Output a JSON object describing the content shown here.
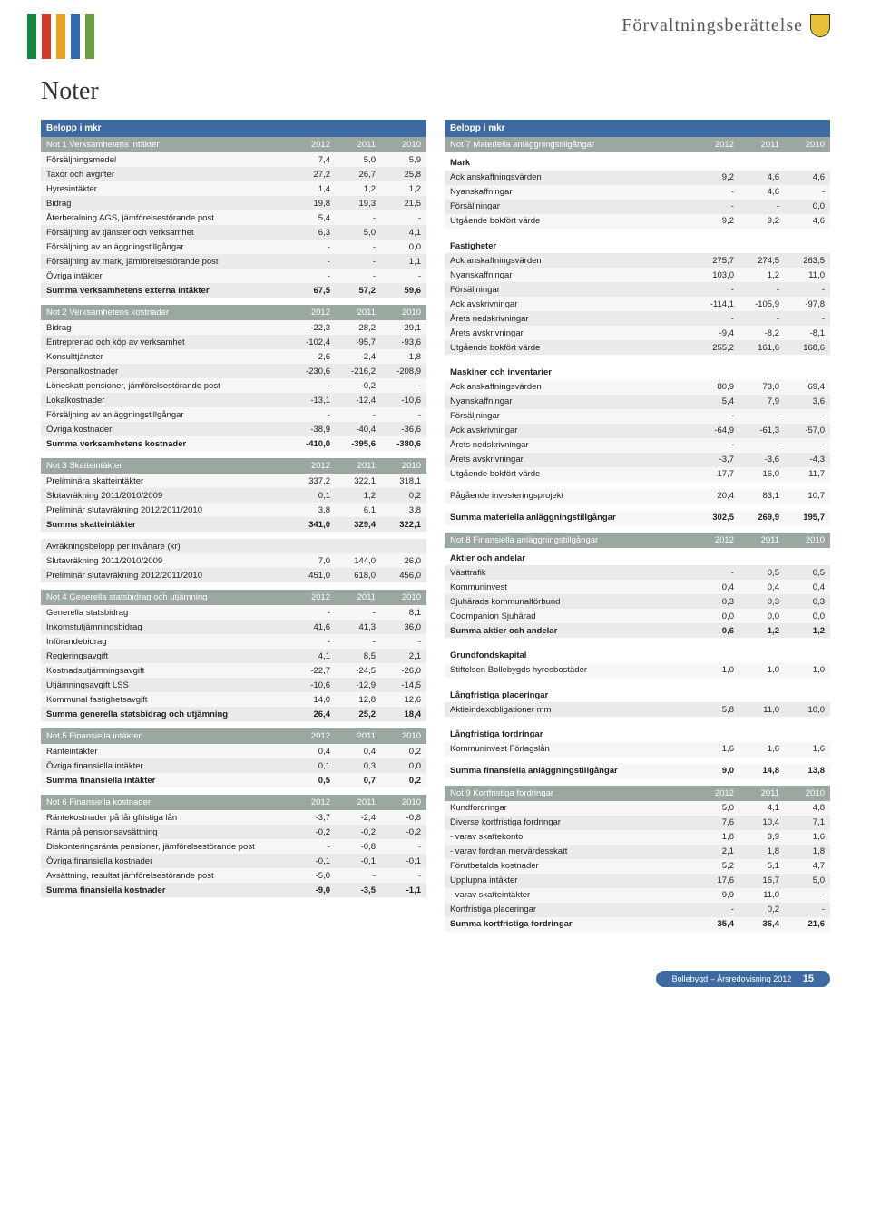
{
  "colors": {
    "header_bg": "#3d6aa0",
    "subhead_bg": "#9ba89f",
    "row_alt": "#e8ebe8",
    "row_base": "#f5f6f5",
    "logo_bars": [
      "#118a41",
      "#cf3a2c",
      "#e8a21d",
      "#2e6bb0",
      "#6b9e3f"
    ]
  },
  "header": {
    "title": "Förvaltningsberättelse"
  },
  "page_title": "Noter",
  "left": {
    "banner": "Belopp i mkr",
    "tables": [
      {
        "sub": "Not 1 Verksamhetens intäkter",
        "cols": [
          "2012",
          "2011",
          "2010"
        ],
        "rows": [
          [
            "Försäljningsmedel",
            "7,4",
            "5,0",
            "5,9"
          ],
          [
            "Taxor och avgifter",
            "27,2",
            "26,7",
            "25,8"
          ],
          [
            "Hyresintäkter",
            "1,4",
            "1,2",
            "1,2"
          ],
          [
            "Bidrag",
            "19,8",
            "19,3",
            "21,5"
          ],
          [
            "Återbetalning AGS, jämförelsestörande post",
            "5,4",
            "-",
            "-"
          ],
          [
            "Försäljning av tjänster och verksamhet",
            "6,3",
            "5,0",
            "4,1"
          ],
          [
            "Försäljning av anläggningstillgångar",
            "-",
            "-",
            "0,0"
          ],
          [
            "Försäljning av mark, jämförelsestörande post",
            "-",
            "-",
            "1,1"
          ],
          [
            "Övriga intäkter",
            "-",
            "-",
            "-"
          ]
        ],
        "sum": [
          "Summa verksamhetens externa intäkter",
          "67,5",
          "57,2",
          "59,6"
        ]
      },
      {
        "sub": "Not 2 Verksamhetens kostnader",
        "cols": [
          "2012",
          "2011",
          "2010"
        ],
        "rows": [
          [
            "Bidrag",
            "-22,3",
            "-28,2",
            "-29,1"
          ],
          [
            "Entreprenad och köp av verksamhet",
            "-102,4",
            "-95,7",
            "-93,6"
          ],
          [
            "Konsulttjänster",
            "-2,6",
            "-2,4",
            "-1,8"
          ],
          [
            "Personalkostnader",
            "-230,6",
            "-216,2",
            "-208,9"
          ],
          [
            "Löneskatt pensioner, jämförelsestörande post",
            "-",
            "-0,2",
            "-"
          ],
          [
            "Lokalkostnader",
            "-13,1",
            "-12,4",
            "-10,6"
          ],
          [
            "Försäljning av anläggningstillgångar",
            "-",
            "-",
            "-"
          ],
          [
            "Övriga kostnader",
            "-38,9",
            "-40,4",
            "-36,6"
          ]
        ],
        "sum": [
          "Summa verksamhetens kostnader",
          "-410,0",
          "-395,6",
          "-380,6"
        ]
      },
      {
        "sub": "Not 3 Skatteintäkter",
        "cols": [
          "2012",
          "2011",
          "2010"
        ],
        "rows": [
          [
            "Preliminära skatteintäkter",
            "337,2",
            "322,1",
            "318,1"
          ],
          [
            "Slutavräkning 2011/2010/2009",
            "0,1",
            "1,2",
            "0,2"
          ],
          [
            "Preliminär slutavräkning 2012/2011/2010",
            "3,8",
            "6,1",
            "3,8"
          ]
        ],
        "sum": [
          "Summa skatteintäkter",
          "341,0",
          "329,4",
          "322,1"
        ],
        "extra_label": "Avräkningsbelopp per invånare (kr)",
        "extra_rows": [
          [
            "Slutavräkning 2011/2010/2009",
            "7,0",
            "144,0",
            "26,0"
          ],
          [
            "Preliminär slutavräkning 2012/2011/2010",
            "451,0",
            "618,0",
            "456,0"
          ]
        ]
      },
      {
        "sub": "Not 4 Generella statsbidrag och utjämning",
        "cols": [
          "2012",
          "2011",
          "2010"
        ],
        "rows": [
          [
            "Generella statsbidrag",
            "-",
            "-",
            "8,1"
          ],
          [
            "Inkomstutjämningsbidrag",
            "41,6",
            "41,3",
            "36,0"
          ],
          [
            "Införandebidrag",
            "-",
            "-",
            "-"
          ],
          [
            "Regleringsavgift",
            "4,1",
            "8,5",
            "2,1"
          ],
          [
            "Kostnadsutjämningsavgift",
            "-22,7",
            "-24,5",
            "-26,0"
          ],
          [
            "Utjämningsavgift LSS",
            "-10,6",
            "-12,9",
            "-14,5"
          ],
          [
            "Kommunal fastighetsavgift",
            "14,0",
            "12,8",
            "12,6"
          ]
        ],
        "sum": [
          "Summa generella statsbidrag och utjämning",
          "26,4",
          "25,2",
          "18,4"
        ]
      },
      {
        "sub": "Not 5 Finansiella intäkter",
        "cols": [
          "2012",
          "2011",
          "2010"
        ],
        "rows": [
          [
            "Ränteintäkter",
            "0,4",
            "0,4",
            "0,2"
          ],
          [
            "Övriga finansiella intäkter",
            "0,1",
            "0,3",
            "0,0"
          ]
        ],
        "sum": [
          "Summa finansiella intäkter",
          "0,5",
          "0,7",
          "0,2"
        ]
      },
      {
        "sub": "Not 6 Finansiella kostnader",
        "cols": [
          "2012",
          "2011",
          "2010"
        ],
        "rows": [
          [
            "Räntekostnader på långfristiga lån",
            "-3,7",
            "-2,4",
            "-0,8"
          ],
          [
            "Ränta på pensionsavsättning",
            "-0,2",
            "-0,2",
            "-0,2"
          ],
          [
            "Diskonteringsränta pensioner, jämförelsestörande post",
            "-",
            "-0,8",
            "-"
          ],
          [
            "Övriga finansiella kostnader",
            "-0,1",
            "-0,1",
            "-0,1"
          ],
          [
            "Avsättning, resultat jämförelsestörande post",
            "-5,0",
            "-",
            "-"
          ]
        ],
        "sum": [
          "Summa finansiella kostnader",
          "-9,0",
          "-3,5",
          "-1,1"
        ]
      }
    ]
  },
  "right": {
    "banner": "Belopp i mkr",
    "not7": {
      "sub": "Not 7 Materiella anläggningstillgångar",
      "cols": [
        "2012",
        "2011",
        "2010"
      ],
      "sections": [
        {
          "label": "Mark",
          "rows": [
            [
              "Ack anskaffningsvärden",
              "9,2",
              "4,6",
              "4,6"
            ],
            [
              "Nyanskaffningar",
              "-",
              "4,6",
              "-"
            ],
            [
              "Försäljningar",
              "-",
              "-",
              "0,0"
            ],
            [
              "Utgående bokfört värde",
              "9,2",
              "9,2",
              "4,6"
            ]
          ]
        },
        {
          "label": "Fastigheter",
          "rows": [
            [
              "Ack anskaffningsvärden",
              "275,7",
              "274,5",
              "263,5"
            ],
            [
              "Nyanskaffningar",
              "103,0",
              "1,2",
              "11,0"
            ],
            [
              "Försäljningar",
              "-",
              "-",
              "-"
            ],
            [
              "Ack avskrivningar",
              "-114,1",
              "-105,9",
              "-97,8"
            ],
            [
              "Årets nedskrivningar",
              "-",
              "-",
              "-"
            ],
            [
              "Årets avskrivningar",
              "-9,4",
              "-8,2",
              "-8,1"
            ],
            [
              "Utgående bokfört värde",
              "255,2",
              "161,6",
              "168,6"
            ]
          ]
        },
        {
          "label": "Maskiner och inventarier",
          "rows": [
            [
              "Ack anskaffningsvärden",
              "80,9",
              "73,0",
              "69,4"
            ],
            [
              "Nyanskaffningar",
              "5,4",
              "7,9",
              "3,6"
            ],
            [
              "Försäljningar",
              "-",
              "-",
              "-"
            ],
            [
              "Ack avskrivningar",
              "-64,9",
              "-61,3",
              "-57,0"
            ],
            [
              "Årets nedskrivningar",
              "-",
              "-",
              "-"
            ],
            [
              "Årets avskrivningar",
              "-3,7",
              "-3,6",
              "-4,3"
            ],
            [
              "Utgående bokfört värde",
              "17,7",
              "16,0",
              "11,7"
            ]
          ]
        }
      ],
      "extra1": [
        "Pågående investeringsprojekt",
        "20,4",
        "83,1",
        "10,7"
      ],
      "sum": [
        "Summa materiella anläggningstillgångar",
        "302,5",
        "269,9",
        "195,7"
      ]
    },
    "not8": {
      "sub": "Not 8 Finansiella anläggningstillgångar",
      "cols": [
        "2012",
        "2011",
        "2010"
      ],
      "sections": [
        {
          "label": "Aktier och andelar",
          "rows": [
            [
              "Västtrafik",
              "-",
              "0,5",
              "0,5"
            ],
            [
              "Kommuninvest",
              "0,4",
              "0,4",
              "0,4"
            ],
            [
              "Sjuhärads kommunalförbund",
              "0,3",
              "0,3",
              "0,3"
            ],
            [
              "Coompanion Sjuhärad",
              "0,0",
              "0,0",
              "0,0"
            ]
          ],
          "subtotal": [
            "Summa aktier och andelar",
            "0,6",
            "1,2",
            "1,2"
          ]
        },
        {
          "label": "Grundfondskapital",
          "rows": [
            [
              "Stiftelsen Bollebygds hyresbostäder",
              "1,0",
              "1,0",
              "1,0"
            ]
          ]
        },
        {
          "label": "Långfristiga placeringar",
          "rows": [
            [
              "Aktieindexobligationer mm",
              "5,8",
              "11,0",
              "10,0"
            ]
          ]
        },
        {
          "label": "Långfristiga fordringar",
          "rows": [
            [
              "Kommuninvest Förlagslån",
              "1,6",
              "1,6",
              "1,6"
            ]
          ]
        }
      ],
      "sum": [
        "Summa finansiella anläggningstillgångar",
        "9,0",
        "14,8",
        "13,8"
      ]
    },
    "not9": {
      "sub": "Not 9 Kortfristiga fordringar",
      "cols": [
        "2012",
        "2011",
        "2010"
      ],
      "rows": [
        [
          "Kundfordringar",
          "5,0",
          "4,1",
          "4,8"
        ],
        [
          "Diverse kortfristiga fordringar",
          "7,6",
          "10,4",
          "7,1"
        ],
        [
          "- varav skattekonto",
          "1,8",
          "3,9",
          "1,6"
        ],
        [
          "- varav fordran mervärdesskatt",
          "2,1",
          "1,8",
          "1,8"
        ],
        [
          "Förutbetalda kostnader",
          "5,2",
          "5,1",
          "4,7"
        ],
        [
          "Upplupna intäkter",
          "17,6",
          "16,7",
          "5,0"
        ],
        [
          "- varav skatteintäkter",
          "9,9",
          "11,0",
          "-"
        ],
        [
          "Kortfristiga placeringar",
          "-",
          "0,2",
          "-"
        ]
      ],
      "sum": [
        "Summa kortfristiga fordringar",
        "35,4",
        "36,4",
        "21,6"
      ]
    }
  },
  "footer": {
    "text": "Bollebygd – Årsredovisning 2012",
    "page": "15"
  }
}
